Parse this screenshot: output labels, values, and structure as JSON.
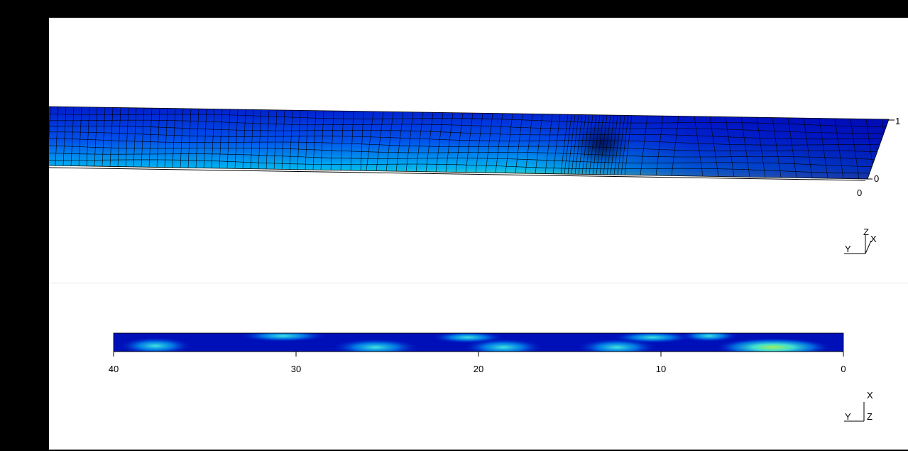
{
  "views": {
    "perspective": {
      "axis_ticks": {
        "z_top": "1",
        "z_bottom": "0",
        "x_zero": "0"
      },
      "triad": {
        "x": "X",
        "y": "Y",
        "z": "Z"
      }
    },
    "top": {
      "x_ticks": [
        "40",
        "30",
        "20",
        "10",
        "0"
      ],
      "triad": {
        "x": "X",
        "y": "Y",
        "z": "Z"
      }
    }
  },
  "colors": {
    "background": "#000000",
    "viewport": "#ffffff",
    "colormap": [
      "#0000a8",
      "#0030e0",
      "#0080f0",
      "#00c8f0",
      "#40e8c0",
      "#a0f060"
    ]
  }
}
